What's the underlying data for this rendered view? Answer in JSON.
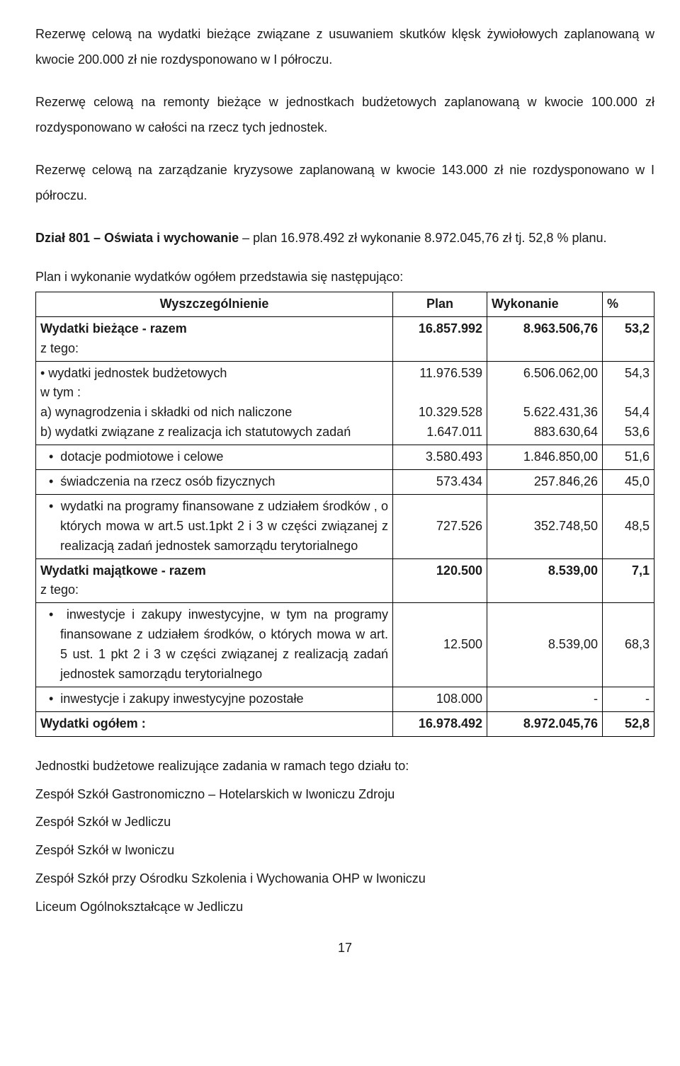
{
  "paragraphs": {
    "p1": "Rezerwę celową na wydatki bieżące związane z usuwaniem skutków klęsk żywiołowych zaplanowaną w kwocie 200.000 zł nie rozdysponowano w I półroczu.",
    "p2": "Rezerwę celową na remonty bieżące w jednostkach budżetowych zaplanowaną w kwocie 100.000 zł rozdysponowano w całości na rzecz tych jednostek.",
    "p3": "Rezerwę celową na zarządzanie kryzysowe zaplanowaną w kwocie 143.000 zł nie rozdysponowano w I półroczu.",
    "p4a": "Dział 801 – Oświata i wychowanie",
    "p4b": " – plan 16.978.492 zł wykonanie 8.972.045,76 zł tj. 52,8 % planu.",
    "p5": "Plan i wykonanie wydatków ogółem przedstawia się następująco:"
  },
  "table": {
    "headers": {
      "c1": "Wyszczególnienie",
      "c2": "Plan",
      "c3": "Wykonanie",
      "c4": "%"
    },
    "rows": [
      {
        "label": "Wydatki bieżące - razem\nz tego:",
        "plan": "16.857.992",
        "wyk": "8.963.506,76",
        "pct": "53,2",
        "bold": true,
        "bullet": false
      },
      {
        "label": "•   wydatki jednostek budżetowych\nw tym :\na) wynagrodzenia i składki od nich naliczone\nb) wydatki związane z realizacja ich statutowych zadań",
        "plan": "11.976.539\n\n10.329.528\n1.647.011",
        "wyk": "6.506.062,00\n\n5.622.431,36\n883.630,64",
        "pct": "54,3\n\n54,4\n53,6",
        "bold": false,
        "bullet": false,
        "multiline": true
      },
      {
        "label": "dotacje podmiotowe i celowe",
        "plan": "3.580.493",
        "wyk": "1.846.850,00",
        "pct": "51,6",
        "bullet": true
      },
      {
        "label": "świadczenia na rzecz osób fizycznych",
        "plan": "573.434",
        "wyk": "257.846,26",
        "pct": "45,0",
        "bullet": true
      },
      {
        "label": "wydatki na programy finansowane z udziałem środków , o których mowa w art.5 ust.1pkt 2 i 3 w części związanej z realizacją zadań jednostek samorządu terytorialnego",
        "plan": "727.526",
        "wyk": "352.748,50",
        "pct": "48,5",
        "bullet": true,
        "valign": "middle"
      },
      {
        "label": "Wydatki majątkowe - razem\nz tego:",
        "plan": "120.500",
        "wyk": "8.539,00",
        "pct": "7,1",
        "bold": true
      },
      {
        "label": "inwestycje i zakupy inwestycyjne, w tym na programy finansowane z udziałem środków, o których mowa w art. 5 ust. 1 pkt 2 i 3 w części związanej z realizacją zadań jednostek samorządu terytorialnego",
        "plan": "12.500",
        "wyk": "8.539,00",
        "pct": "68,3",
        "bullet": true,
        "valign": "middle"
      },
      {
        "label": "inwestycje i zakupy inwestycyjne pozostałe",
        "plan": "108.000",
        "wyk": "-",
        "pct": "-",
        "bullet": true
      },
      {
        "label": "Wydatki ogółem :",
        "plan": "16.978.492",
        "wyk": "8.972.045,76",
        "pct": "52,8",
        "bold": true
      }
    ]
  },
  "after": {
    "intro": "Jednostki budżetowe realizujące zadania w ramach tego działu to:",
    "items": [
      "Zespół Szkół Gastronomiczno – Hotelarskich w Iwoniczu Zdroju",
      "Zespół Szkół w Jedliczu",
      "Zespół Szkół w Iwoniczu",
      "Zespół Szkół przy Ośrodku Szkolenia i Wychowania OHP w Iwoniczu",
      "Liceum Ogólnokształcące w Jedliczu"
    ]
  },
  "pageNumber": "17"
}
